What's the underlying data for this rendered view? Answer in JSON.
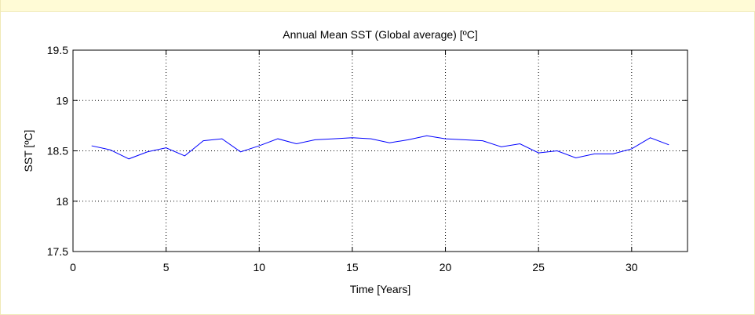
{
  "chart_data": {
    "type": "line",
    "title": "Annual Mean SST (Global average) [ºC]",
    "xlabel": "Time [Years]",
    "ylabel": "SST [ºC]",
    "xlim": [
      0,
      33
    ],
    "ylim": [
      17.5,
      19.5
    ],
    "x_ticks": [
      0,
      5,
      10,
      15,
      20,
      25,
      30
    ],
    "x_tick_labels": [
      "0",
      "5",
      "10",
      "15",
      "20",
      "25",
      "30"
    ],
    "y_ticks": [
      17.5,
      18,
      18.5,
      19,
      19.5
    ],
    "y_tick_labels": [
      "17.5",
      "18",
      "18.5",
      "19",
      "19.5"
    ],
    "grid": true,
    "series": [
      {
        "color": "#0000ff",
        "x": [
          1,
          2,
          3,
          4,
          5,
          6,
          7,
          8,
          9,
          10,
          11,
          12,
          13,
          14,
          15,
          16,
          17,
          18,
          19,
          20,
          21,
          22,
          23,
          24,
          25,
          26,
          27,
          28,
          29,
          30,
          31,
          32
        ],
        "y": [
          18.55,
          18.51,
          18.42,
          18.49,
          18.53,
          18.45,
          18.6,
          18.62,
          18.49,
          18.55,
          18.62,
          18.57,
          18.61,
          18.62,
          18.63,
          18.62,
          18.58,
          18.61,
          18.65,
          18.62,
          18.61,
          18.6,
          18.54,
          18.57,
          18.48,
          18.5,
          18.43,
          18.47,
          18.47,
          18.52,
          18.63,
          18.56
        ]
      }
    ]
  }
}
